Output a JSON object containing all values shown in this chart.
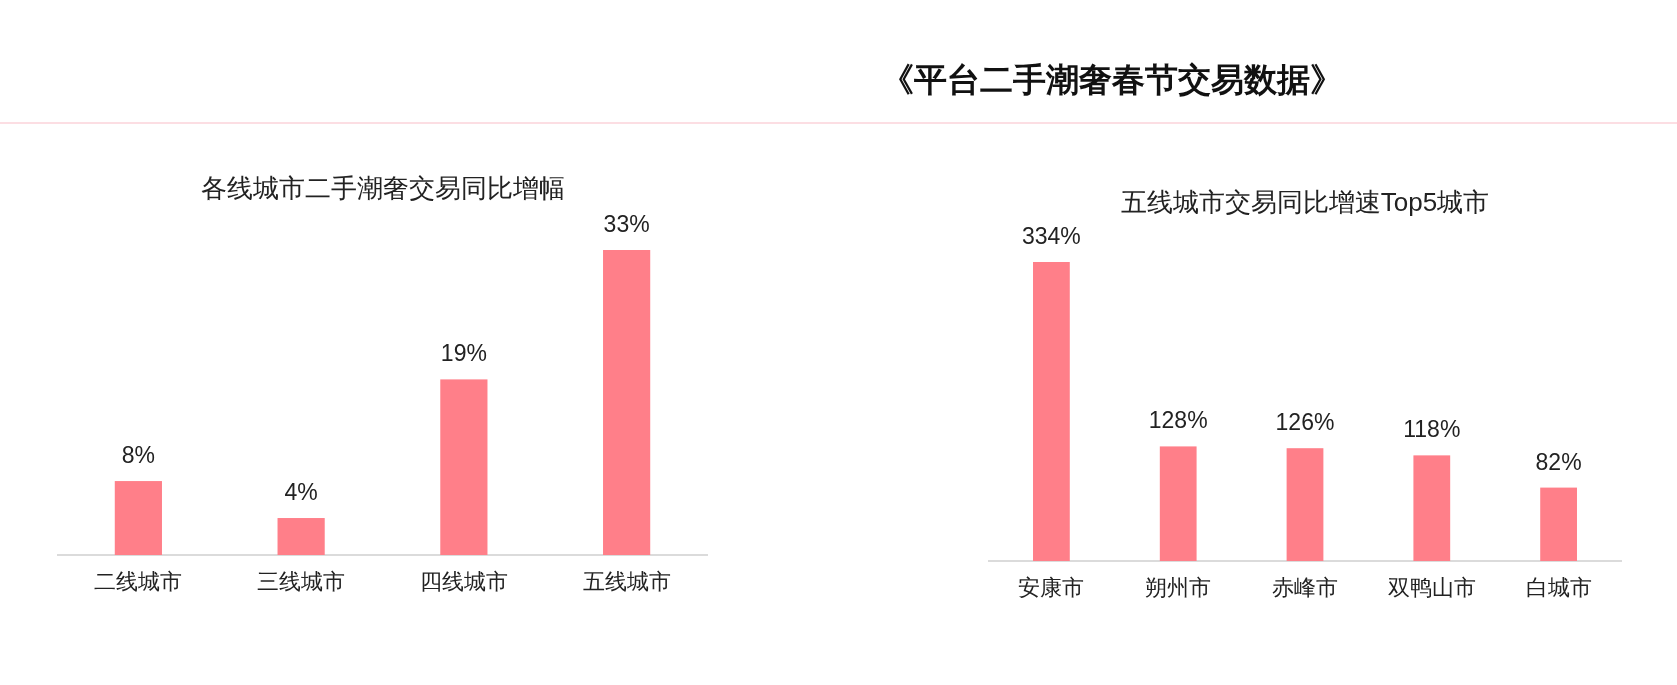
{
  "chart_data": [
    {
      "type": "other",
      "title": "《平台二手潮奢春节交易数据》"
    },
    {
      "type": "bar",
      "title": "各线城市二手潮奢交易同比增幅",
      "categories": [
        "二线城市",
        "三线城市",
        "四线城市",
        "五线城市"
      ],
      "values": [
        8,
        4,
        19,
        33
      ],
      "value_labels": [
        "8%",
        "4%",
        "19%",
        "33%"
      ],
      "color": "#ff7f89",
      "tick_labels": "x"
    },
    {
      "type": "bar",
      "title": "五线城市交易同比增速Top5城市",
      "categories": [
        "安康市",
        "朔州市",
        "赤峰市",
        "双鸭山市",
        "白城市"
      ],
      "values": [
        334,
        128,
        126,
        118,
        82
      ],
      "value_labels": [
        "334%",
        "128%",
        "126%",
        "118%",
        "82%"
      ],
      "color": "#ff7f89",
      "tick_labels": "x"
    }
  ]
}
